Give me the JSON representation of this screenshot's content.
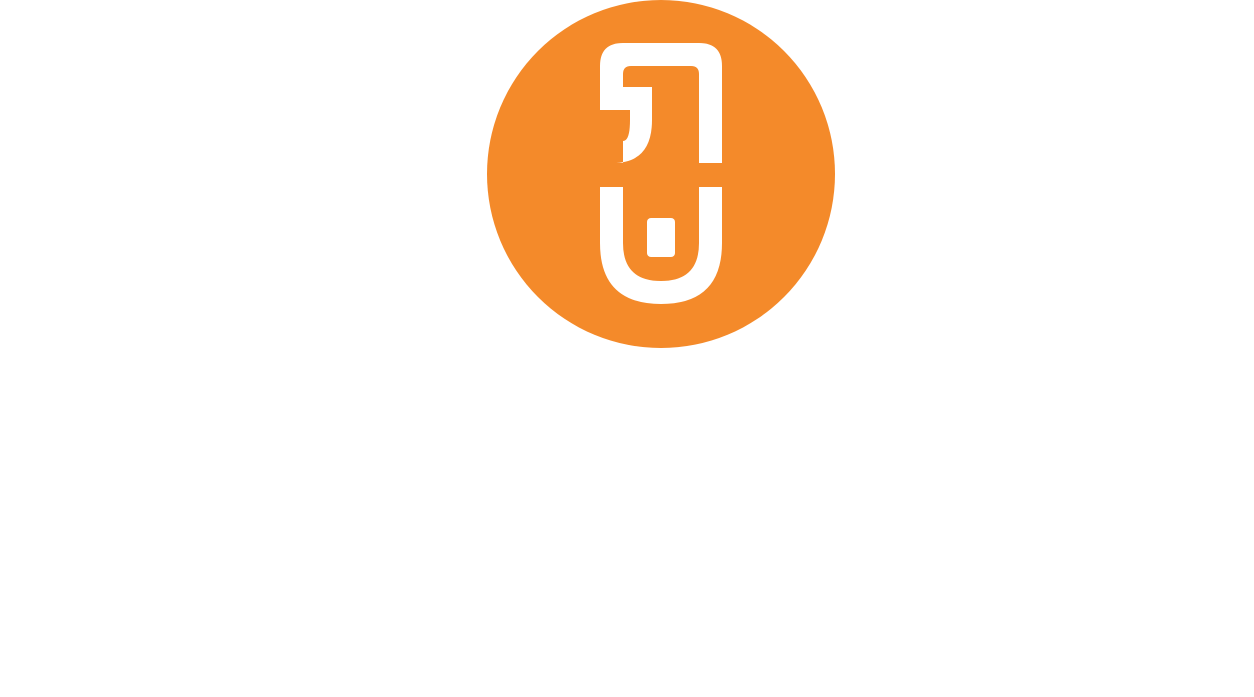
{
  "logo": {
    "name": "orange-circle-glyph-logo",
    "background_color": "#F48A2A",
    "glyph_color": "#FFFFFF"
  }
}
